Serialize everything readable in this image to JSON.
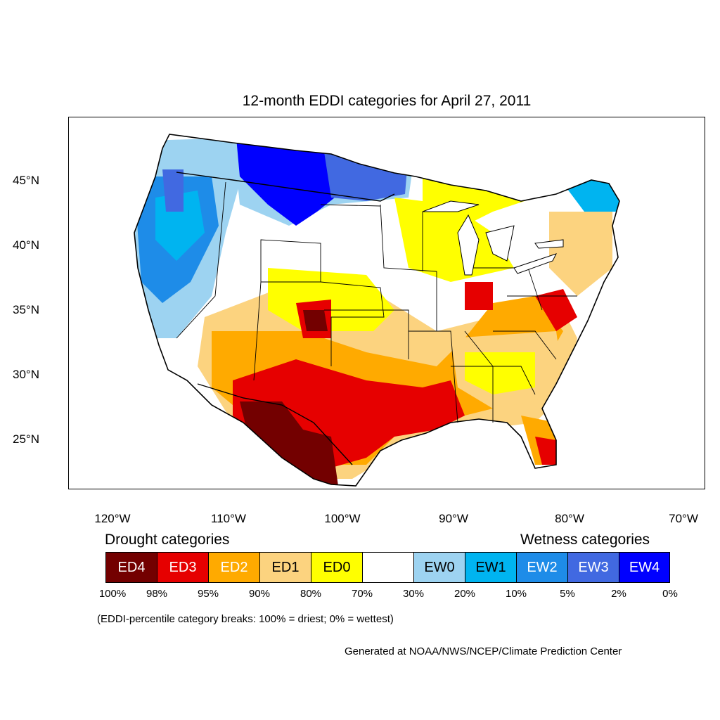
{
  "title": "12-month EDDI categories for April 27, 2011",
  "axes": {
    "lat_labels": [
      "45°N",
      "40°N",
      "35°N",
      "30°N",
      "25°N"
    ],
    "lon_labels": [
      "120°W",
      "110°W",
      "100°W",
      "90°W",
      "80°W",
      "70°W"
    ]
  },
  "legend": {
    "drought_heading": "Drought categories",
    "wetness_heading": "Wetness categories",
    "categories": [
      {
        "label": "ED4",
        "color": "#730000",
        "text_color": "#ffffff"
      },
      {
        "label": "ED3",
        "color": "#e60000",
        "text_color": "#ffffff"
      },
      {
        "label": "ED2",
        "color": "#ffaa00",
        "text_color": "#ffffff"
      },
      {
        "label": "ED1",
        "color": "#fcd37f",
        "text_color": "#000000"
      },
      {
        "label": "ED0",
        "color": "#ffff00",
        "text_color": "#000000"
      },
      {
        "label": "",
        "color": "#ffffff",
        "text_color": "#000000"
      },
      {
        "label": "EW0",
        "color": "#9dd3f1",
        "text_color": "#000000"
      },
      {
        "label": "EW1",
        "color": "#00b4f0",
        "text_color": "#000000"
      },
      {
        "label": "EW2",
        "color": "#1e8ce8",
        "text_color": "#ffffff"
      },
      {
        "label": "EW3",
        "color": "#4169e1",
        "text_color": "#ffffff"
      },
      {
        "label": "EW4",
        "color": "#0000ff",
        "text_color": "#ffffff"
      }
    ],
    "percentiles": [
      "100%",
      "98%",
      "95%",
      "90%",
      "80%",
      "70%",
      "30%",
      "20%",
      "10%",
      "5%",
      "2%",
      "0%"
    ]
  },
  "note": "(EDDI-percentile category breaks: 100% = driest; 0% = wettest)",
  "credit": "Generated at NOAA/NWS/NCEP/Climate Prediction Center"
}
